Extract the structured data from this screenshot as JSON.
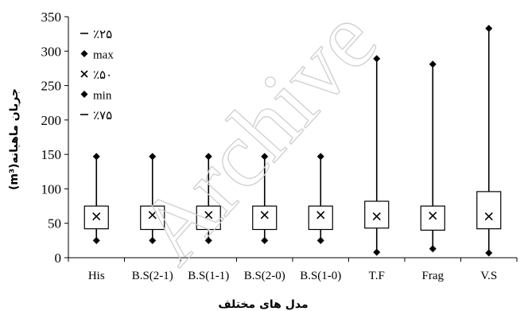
{
  "chart_data": {
    "type": "box",
    "categories": [
      "His",
      "B.S(2-1)",
      "B.S(1-1)",
      "B.S(2-0)",
      "B.S(1-0)",
      "T.F",
      "Frag",
      "V.S"
    ],
    "series": [
      {
        "name": "٪۲۵",
        "values": [
          42,
          41,
          41,
          41,
          41,
          43,
          40,
          42
        ]
      },
      {
        "name": "max",
        "values": [
          147,
          147,
          147,
          147,
          147,
          289,
          281,
          333
        ]
      },
      {
        "name": "٪۵۰",
        "values": [
          60,
          62,
          62,
          62,
          62,
          60,
          61,
          60
        ]
      },
      {
        "name": "min",
        "values": [
          25,
          25,
          25,
          25,
          25,
          8,
          13,
          7
        ]
      },
      {
        "name": "٪۷۵",
        "values": [
          75,
          75,
          75,
          75,
          75,
          82,
          75,
          96
        ]
      }
    ],
    "title": "",
    "xlabel": "مدل های مختلف",
    "ylabel": "جریان ماهیانه(m³)",
    "ylim": [
      0,
      350
    ],
    "yticks": [
      "0",
      "50",
      "100",
      "150",
      "200",
      "250",
      "300",
      "350"
    ],
    "grid": false,
    "legend_position": "top-left",
    "watermark": "Archive",
    "colors": {
      "marks": "#000000",
      "watermark": "#cfcfcf"
    }
  }
}
